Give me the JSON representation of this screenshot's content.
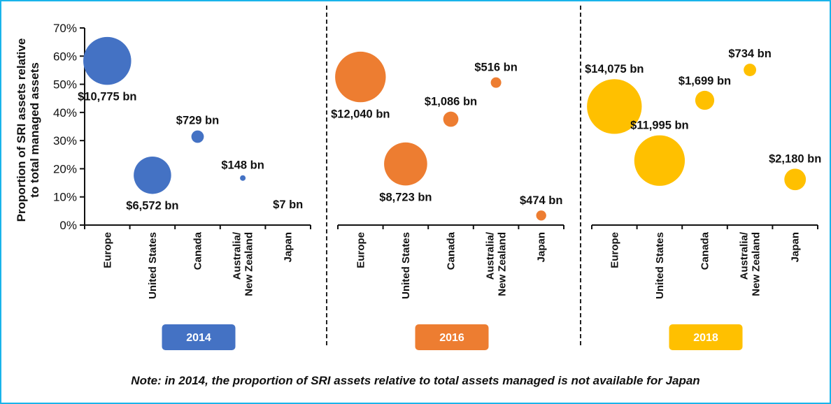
{
  "chart_data": {
    "type": "scatter",
    "subtype": "bubble",
    "ylabel_lines": [
      "Proportion of SRI assets relative",
      "to total managed assets"
    ],
    "ylim": [
      0,
      70
    ],
    "yticks": [
      "0%",
      "10%",
      "20%",
      "30%",
      "40%",
      "50%",
      "60%",
      "70%"
    ],
    "grid": false,
    "categories": [
      "Europe",
      "United States",
      "Canada",
      "Australia/\nNew Zealand",
      "Japan"
    ],
    "category_label_lines": [
      [
        "Europe"
      ],
      [
        "United States"
      ],
      [
        "Canada"
      ],
      [
        "Australia/",
        "New Zealand"
      ],
      [
        "Japan"
      ]
    ],
    "size_unit": "SRI assets (USD bn)",
    "panels": [
      {
        "year": "2014",
        "color": "#4472c4",
        "points": [
          {
            "category": "Europe",
            "proportion": 58.3,
            "assets_bn": 10775,
            "label": "$10,775 bn",
            "label_pos": "below"
          },
          {
            "category": "United States",
            "proportion": 17.7,
            "assets_bn": 6572,
            "label": "$6,572 bn",
            "label_pos": "below"
          },
          {
            "category": "Canada",
            "proportion": 31.4,
            "assets_bn": 729,
            "label": "$729 bn",
            "label_pos": "above"
          },
          {
            "category": "Australia/New Zealand",
            "proportion": 16.7,
            "assets_bn": 148,
            "label": "$148 bn",
            "label_pos": "above"
          },
          {
            "category": "Japan",
            "proportion": null,
            "assets_bn": 7,
            "label": "$7 bn",
            "label_pos": "above"
          }
        ]
      },
      {
        "year": "2016",
        "color": "#ed7d31",
        "points": [
          {
            "category": "Europe",
            "proportion": 52.6,
            "assets_bn": 12040,
            "label": "$12,040 bn",
            "label_pos": "below"
          },
          {
            "category": "United States",
            "proportion": 21.7,
            "assets_bn": 8723,
            "label": "$8,723 bn",
            "label_pos": "below"
          },
          {
            "category": "Canada",
            "proportion": 37.6,
            "assets_bn": 1086,
            "label": "$1,086 bn",
            "label_pos": "above"
          },
          {
            "category": "Australia/New Zealand",
            "proportion": 50.6,
            "assets_bn": 516,
            "label": "$516 bn",
            "label_pos": "above"
          },
          {
            "category": "Japan",
            "proportion": 3.4,
            "assets_bn": 474,
            "label": "$474 bn",
            "label_pos": "above"
          }
        ]
      },
      {
        "year": "2018",
        "color": "#ffc000",
        "points": [
          {
            "category": "Europe",
            "proportion": 42.1,
            "assets_bn": 14075,
            "label": "$14,075 bn",
            "label_pos": "above"
          },
          {
            "category": "United States",
            "proportion": 22.9,
            "assets_bn": 11995,
            "label": "$11,995 bn",
            "label_pos": "above"
          },
          {
            "category": "Canada",
            "proportion": 44.3,
            "assets_bn": 1699,
            "label": "$1,699 bn",
            "label_pos": "above"
          },
          {
            "category": "Australia/New Zealand",
            "proportion": 55.1,
            "assets_bn": 734,
            "label": "$734 bn",
            "label_pos": "above"
          },
          {
            "category": "Japan",
            "proportion": 16.2,
            "assets_bn": 2180,
            "label": "$2,180 bn",
            "label_pos": "above"
          }
        ]
      }
    ],
    "note": "Note: in 2014, the proportion of SRI assets relative to total assets managed is not available for Japan"
  },
  "frame_color": "#1ab4ea"
}
